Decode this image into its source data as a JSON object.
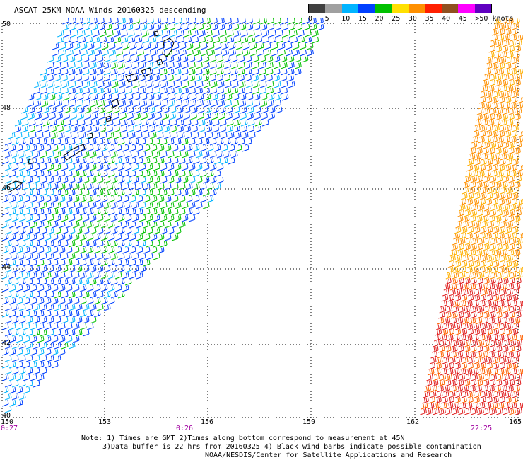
{
  "title": "ASCAT 25KM NOAA Winds 20160325 descending",
  "legend": {
    "labels": [
      "0",
      "5",
      "10",
      "15",
      "20",
      "25",
      "30",
      "35",
      "40",
      "45",
      ">50 knots"
    ],
    "colors": [
      "#404040",
      "#a0a0a0",
      "#00b4ff",
      "#0040ff",
      "#00c000",
      "#ffe000",
      "#ff9000",
      "#ff2000",
      "#905020",
      "#ff00ff",
      "#6000c0"
    ]
  },
  "lat_labels": [
    "50",
    "48",
    "46",
    "44",
    "42",
    "40"
  ],
  "lon_labels": [
    "150",
    "153",
    "156",
    "159",
    "162",
    "165"
  ],
  "time_labels": [
    {
      "text": "0:27",
      "lon": 150
    },
    {
      "text": "0:26",
      "lon": 155.3
    },
    {
      "text": "22:25",
      "lon": 163.9
    }
  ],
  "time_label_color": "#a000a0",
  "notes": {
    "line1": "Note: 1) Times are GMT 2)Times along bottom correspond to measurement at 45N",
    "line2": "3)Data buffer is 22 hrs from 20160325 4) Black wind barbs indicate possible contamination",
    "line3": "NOAA/NESDIS/Center for Satellite Applications and Research"
  }
}
